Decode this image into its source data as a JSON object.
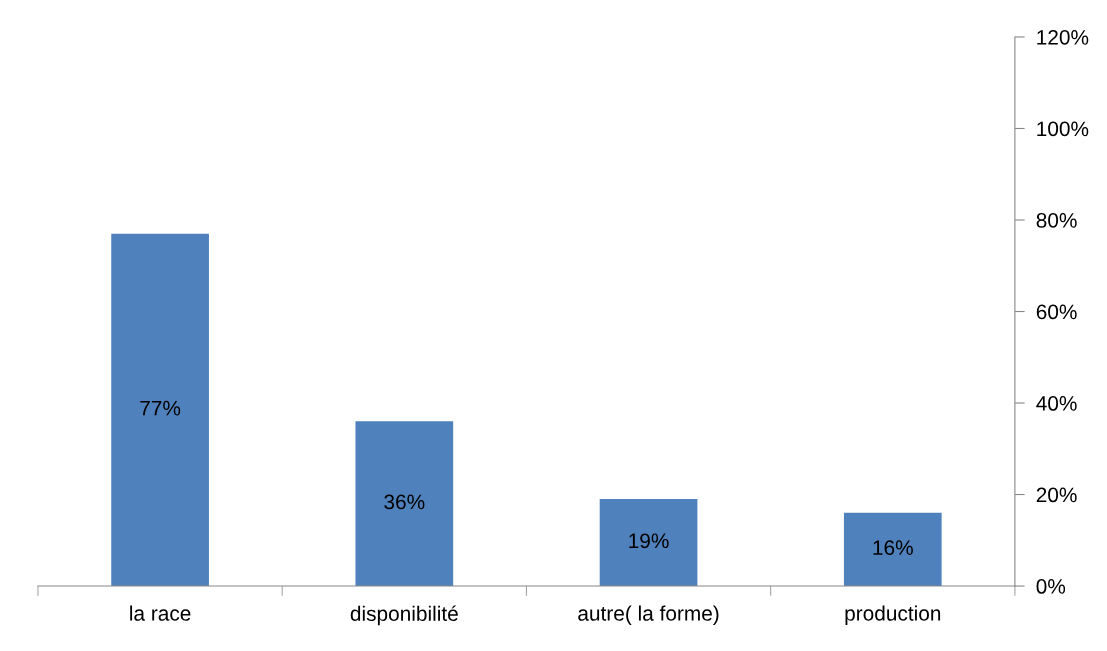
{
  "chart_data": {
    "type": "bar",
    "categories": [
      "la race",
      "disponibilité",
      "autre( la forme)",
      "production"
    ],
    "values": [
      77,
      36,
      19,
      16
    ],
    "value_labels": [
      "77%",
      "36%",
      "19%",
      "16%"
    ],
    "color": "#4f81bd",
    "ylim": [
      0,
      120
    ],
    "yticks": [
      {
        "value": 0,
        "label": "0%"
      },
      {
        "value": 20,
        "label": "20%"
      },
      {
        "value": 40,
        "label": "40%"
      },
      {
        "value": 60,
        "label": "60%"
      },
      {
        "value": 80,
        "label": "80%"
      },
      {
        "value": 100,
        "label": "100%"
      },
      {
        "value": 120,
        "label": "120%"
      }
    ],
    "grid": false,
    "legend": false
  }
}
